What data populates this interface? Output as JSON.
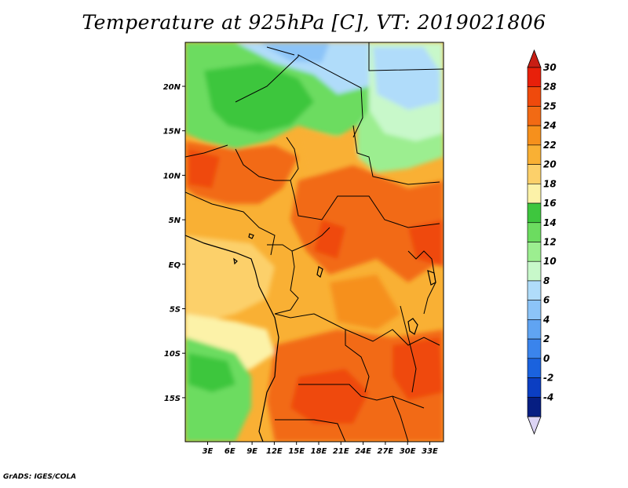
{
  "title": "Temperature at 925hPa [C], VT: 2019021806",
  "credit": "GrADS: IGES/COLA",
  "map": {
    "lat_labels": [
      "20N",
      "15N",
      "10N",
      "5N",
      "EQ",
      "5S",
      "10S",
      "15S"
    ],
    "lon_labels": [
      "3E",
      "6E",
      "9E",
      "12E",
      "15E",
      "18E",
      "21E",
      "24E",
      "27E",
      "30E",
      "33E"
    ]
  },
  "colorbar": {
    "ticks": [
      "30",
      "28",
      "25",
      "24",
      "22",
      "20",
      "18",
      "16",
      "14",
      "12",
      "10",
      "8",
      "6",
      "4",
      "2",
      "0",
      "-2",
      "-4"
    ],
    "colors": [
      "#e8200a",
      "#ef4a0c",
      "#f26a14",
      "#f6901c",
      "#f9b034",
      "#fcd06a",
      "#fcf2a8",
      "#3ec63e",
      "#6cdc60",
      "#9cee90",
      "#c8f8ca",
      "#b0dcfa",
      "#8cc4f8",
      "#60a4f2",
      "#3a84ec",
      "#1a62de",
      "#0b3ec2",
      "#061e82"
    ],
    "top_color": "#c81e14",
    "bottom_color": "#dcd4f4"
  }
}
